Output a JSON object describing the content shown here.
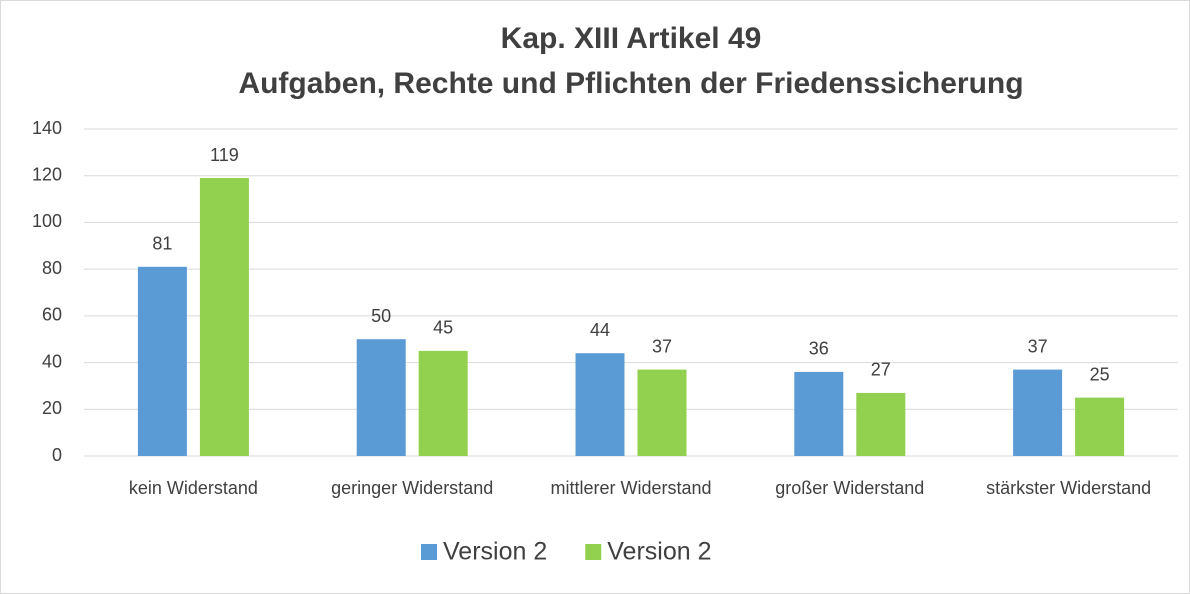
{
  "chart_data": {
    "type": "bar",
    "title": [
      "Kap. XIII Artikel 49",
      "Aufgaben, Rechte und Pflichten der Friedenssicherung"
    ],
    "categories": [
      "kein Widerstand",
      "geringer Widerstand",
      "mittlerer Widerstand",
      "großer Widerstand",
      "stärkster Widerstand"
    ],
    "series": [
      {
        "name": "Version 2",
        "color": "#5b9bd5",
        "values": [
          81,
          50,
          44,
          36,
          37
        ]
      },
      {
        "name": "Version 2",
        "color": "#92d050",
        "values": [
          119,
          45,
          37,
          27,
          25
        ]
      }
    ],
    "ylim": [
      0,
      140
    ],
    "yticks": [
      0,
      20,
      40,
      60,
      80,
      100,
      120,
      140
    ],
    "grid": true,
    "legend": "bottom"
  }
}
